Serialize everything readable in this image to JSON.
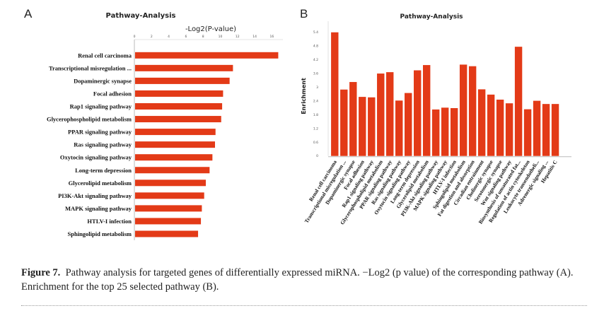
{
  "panels": {
    "a": "A",
    "b": "B"
  },
  "chart_data": [
    {
      "type": "bar",
      "orientation": "horizontal",
      "title": "Pathway-Analysis",
      "xlabel": "-Log2(P-value)",
      "ylabel": "",
      "xlim": [
        0,
        17
      ],
      "xticks": [
        "0",
        "2",
        "4",
        "6",
        "8",
        "10",
        "12",
        "14",
        "16"
      ],
      "categories": [
        "Renal cell carcinoma",
        "Transcriptional misregulation ...",
        "Dopaminergic synapse",
        "Focal adhesion",
        "Rap1 signaling pathway",
        "Glycerophospholipid metabolism",
        "PPAR signaling pathway",
        "Ras signaling pathway",
        "Oxytocin signaling pathway",
        "Long-term depression",
        "Glycerolipid metabolism",
        "PI3K-Akt signaling pathway",
        "MAPK signaling pathway",
        "HTLV-I infection",
        "Sphingolipid metabolism"
      ],
      "values": [
        16.66,
        11.39,
        11.0,
        10.24,
        10.13,
        10.02,
        9.36,
        9.3,
        9.0,
        8.67,
        8.23,
        8.04,
        7.77,
        7.66,
        7.33
      ],
      "color": "#e33a17",
      "grid": false
    },
    {
      "type": "bar",
      "orientation": "vertical",
      "title": "Pathway-Analysis",
      "xlabel": "",
      "ylabel": "Enrichment",
      "ylim": [
        0,
        5.6
      ],
      "yticks": [
        "0",
        "0.6",
        "1.2",
        "1.8",
        "2.4",
        "3",
        "3.6",
        "4.2",
        "4.8",
        "5.4"
      ],
      "categories": [
        "Renal cell carcinoma",
        "Transcriptional misregulation ...",
        "Dopaminergic synapse",
        "Focal adhesion",
        "Rap1 signaling pathway",
        "Glycerophospholipid metabolism",
        "PPAR signaling pathway",
        "Ras signaling pathway",
        "Oxytocin signaling pathway",
        "Long-term depression",
        "Glycerolipid metabolism",
        "PI3K-Akt signaling pathway",
        "MAPK signaling pathway",
        "HTLV-I infection",
        "Sphingolipid metabolism",
        "Fat digestion and absorption",
        "Circadian entrainment",
        "Cholinergic synapse",
        "Serotonergic synapse",
        "Wnt signaling pathway",
        "Biosynthesis of unsaturated fat...",
        "Regulation of actin cytoskeleton",
        "Leukocyte transendotheli...",
        "Adrenergic signaling ...",
        "Hepatitis C"
      ],
      "values": [
        5.4,
        2.9,
        3.23,
        2.58,
        2.56,
        3.6,
        3.66,
        2.42,
        2.75,
        3.74,
        3.97,
        2.03,
        2.11,
        2.09,
        3.99,
        3.92,
        2.91,
        2.68,
        2.46,
        2.3,
        4.77,
        2.04,
        2.41,
        2.27,
        2.27
      ],
      "color": "#e33a17",
      "grid": false
    }
  ],
  "caption": {
    "label": "Figure 7.",
    "text": "Pathway analysis for targeted genes of differentially expressed miRNA. −Log2 (p value) of the corresponding pathway (A). Enrichment for the top 25 selected pathway (B)."
  }
}
